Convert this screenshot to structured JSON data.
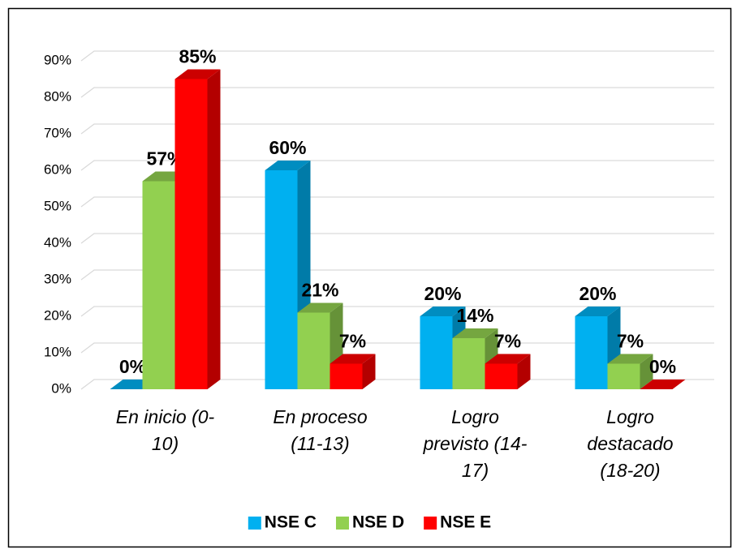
{
  "chart_data": {
    "type": "bar3d",
    "categories": [
      [
        "En inicio (0-",
        "10)"
      ],
      [
        "En proceso",
        "(11-13)"
      ],
      [
        "Logro",
        "previsto (14-",
        "17)"
      ],
      [
        "Logro",
        "destacado",
        "(18-20)"
      ]
    ],
    "series": [
      {
        "name": "NSE C",
        "color": "#00b0f0",
        "values": [
          0,
          60,
          20,
          20
        ],
        "value_labels": [
          "0%",
          "60%",
          "20%",
          "20%"
        ]
      },
      {
        "name": "NSE D",
        "color": "#92d050",
        "values": [
          57,
          21,
          14,
          7
        ],
        "value_labels": [
          "57%",
          "21%",
          "14%",
          "7%"
        ]
      },
      {
        "name": "NSE E",
        "color": "#ff0000",
        "values": [
          85,
          7,
          7,
          0
        ],
        "value_labels": [
          "85%",
          "7%",
          "7%",
          "0%"
        ]
      }
    ],
    "ylim": [
      0,
      90
    ],
    "yticks": [
      {
        "value": 0,
        "label": "0%"
      },
      {
        "value": 10,
        "label": "10%"
      },
      {
        "value": 20,
        "label": "20%"
      },
      {
        "value": 30,
        "label": "30%"
      },
      {
        "value": 40,
        "label": "40%"
      },
      {
        "value": 50,
        "label": "50%"
      },
      {
        "value": 60,
        "label": "60%"
      },
      {
        "value": 70,
        "label": "70%"
      },
      {
        "value": 80,
        "label": "80%"
      },
      {
        "value": 90,
        "label": "90%"
      }
    ],
    "grid": true,
    "legend": "bottom"
  }
}
